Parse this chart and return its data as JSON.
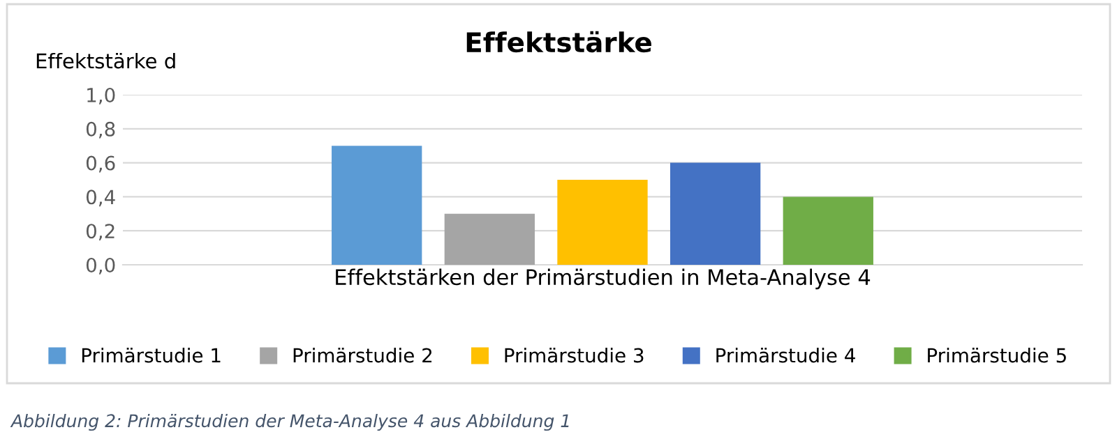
{
  "chart_data": {
    "type": "bar",
    "title": "Effektstärke",
    "ylabel": "Effektstärke d",
    "categories": [
      "Effektstärken der Primärstudien in Meta-Analyse 4"
    ],
    "series": [
      {
        "name": "Primärstudie 1",
        "color": "#5b9bd5",
        "values": [
          0.7
        ]
      },
      {
        "name": "Primärstudie 2",
        "color": "#a5a5a5",
        "values": [
          0.3
        ]
      },
      {
        "name": "Primärstudie 3",
        "color": "#ffc000",
        "values": [
          0.5
        ]
      },
      {
        "name": "Primärstudie 4",
        "color": "#4472c4",
        "values": [
          0.6
        ]
      },
      {
        "name": "Primärstudie 5",
        "color": "#70ad47",
        "values": [
          0.4
        ]
      }
    ],
    "ylim": [
      0,
      1
    ],
    "yticks": [
      {
        "value": 0,
        "label": "0,0"
      },
      {
        "value": 0.2,
        "label": "0,2"
      },
      {
        "value": 0.4,
        "label": "0,4"
      },
      {
        "value": 0.6,
        "label": "0,6"
      },
      {
        "value": 0.8,
        "label": "0,8"
      },
      {
        "value": 1,
        "label": "1,0"
      }
    ],
    "grid": "y",
    "legend": "bottom",
    "annotations": [
      "Abbildung 2: Primärstudien der Meta-Analyse 4 aus Abbildung 1"
    ]
  }
}
